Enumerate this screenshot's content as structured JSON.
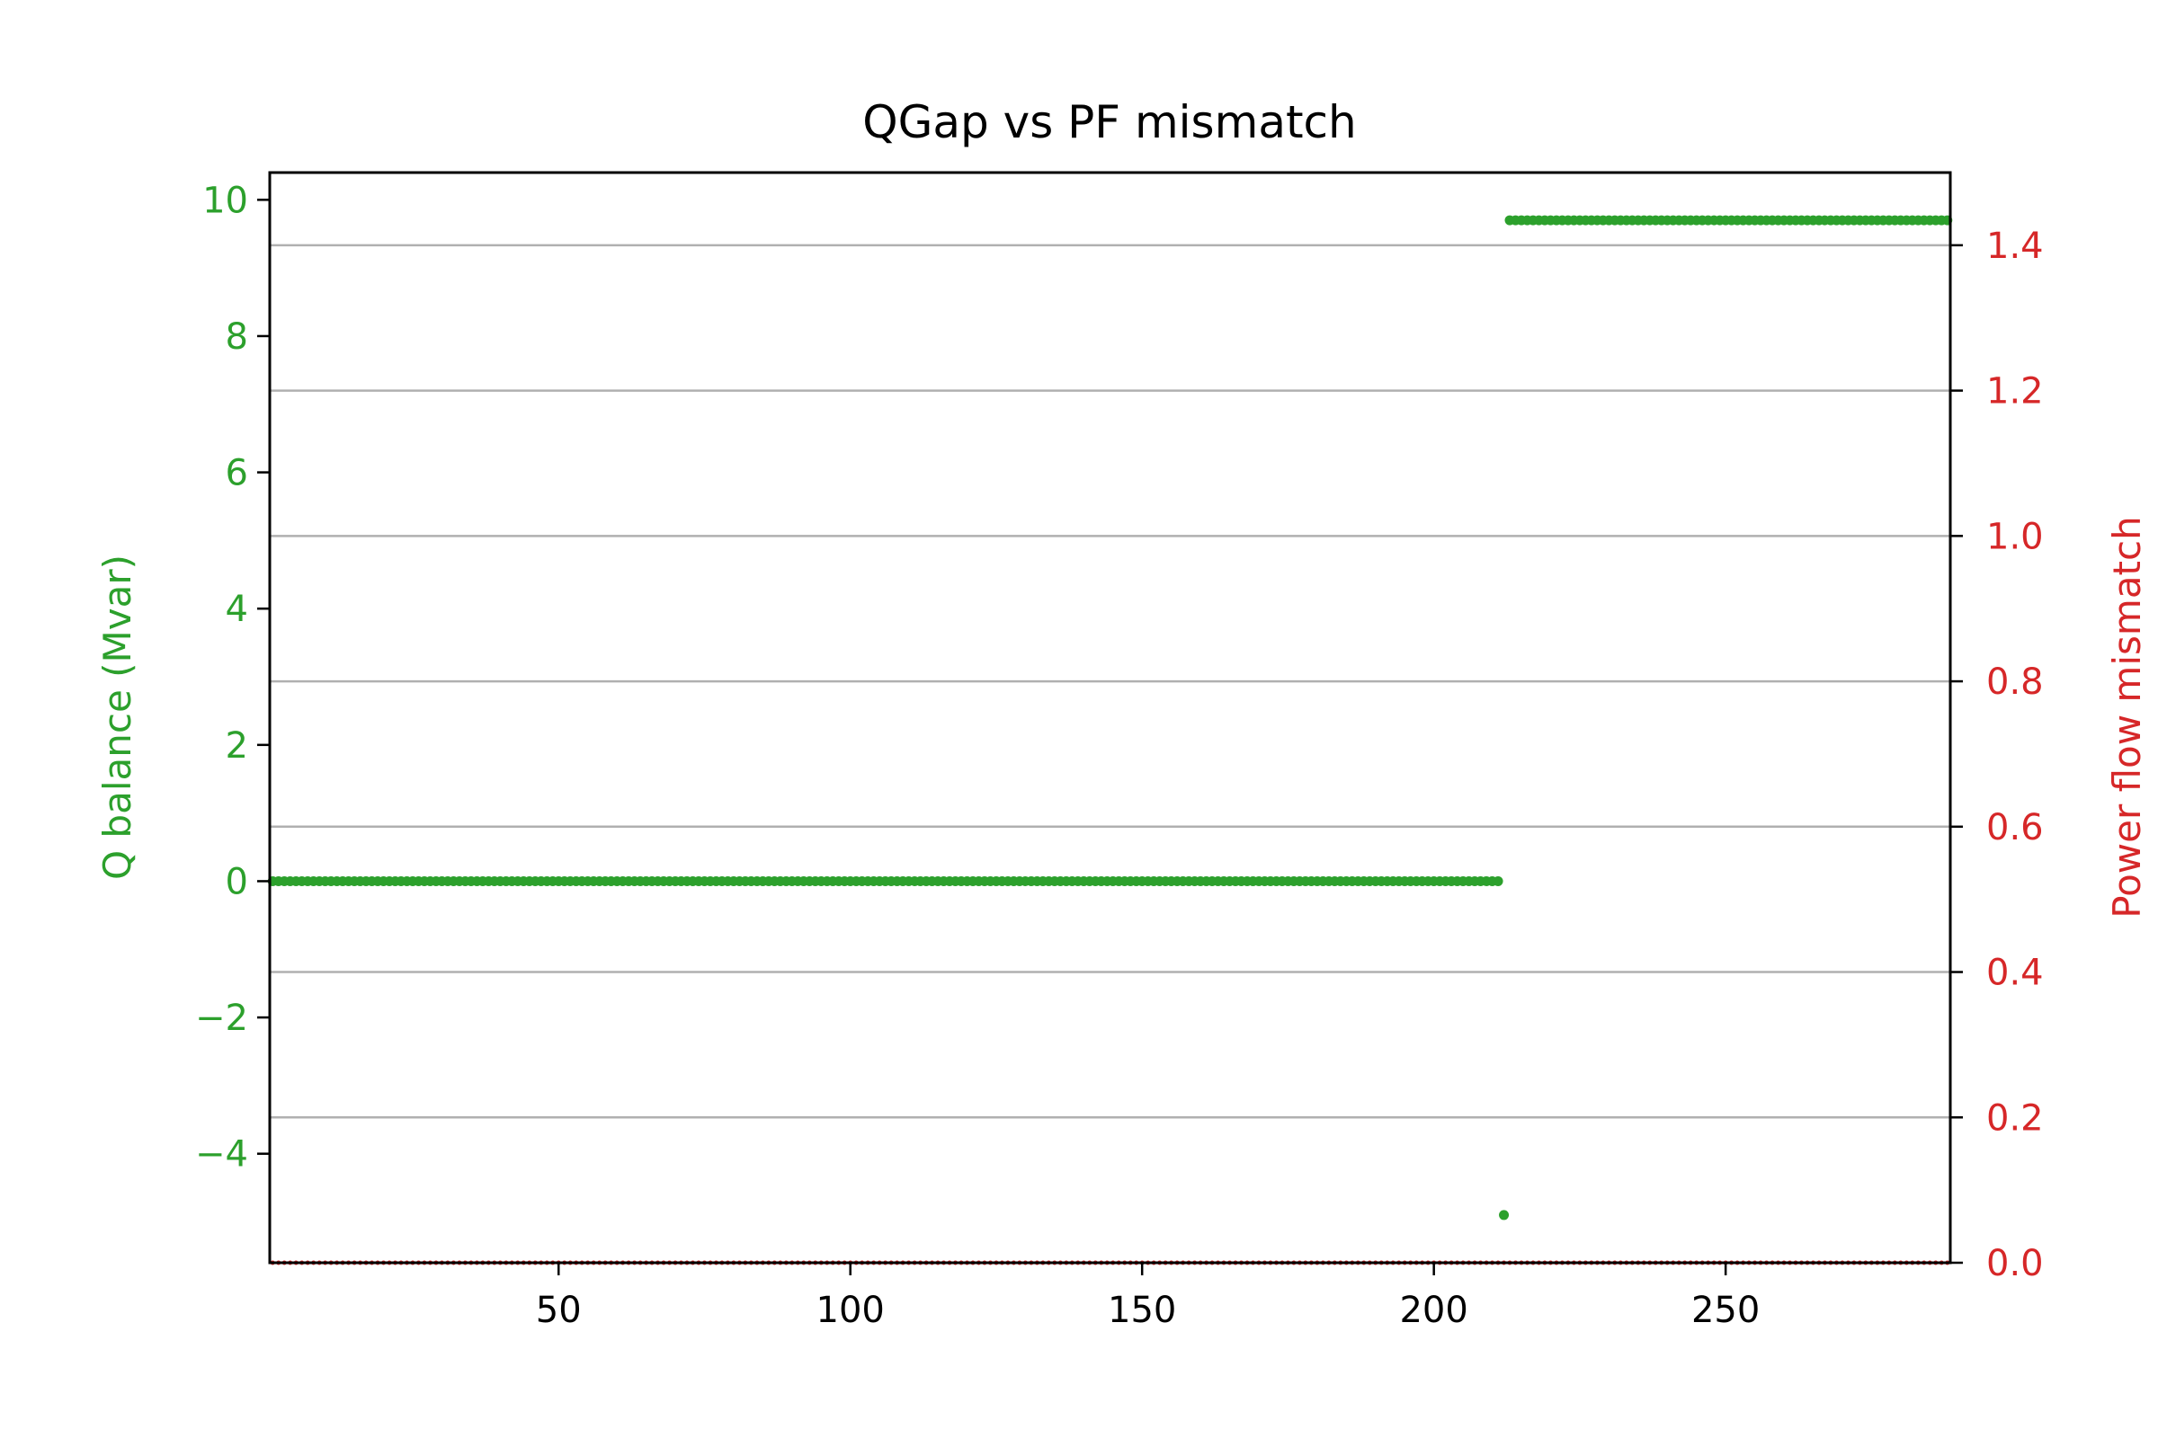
{
  "chart_data": {
    "type": "scatter",
    "title": "QGap vs PF mismatch",
    "xlabel": "",
    "xlim": [
      0.5,
      288.5
    ],
    "x_ticks": [
      50,
      100,
      150,
      200,
      250
    ],
    "x_tick_labels": [
      "50",
      "100",
      "150",
      "200",
      "250"
    ],
    "left_axis": {
      "label": "Q balance (Mvar)",
      "color": "#2ca02c",
      "ylim": [
        -5.6,
        10.4
      ],
      "ticks": [
        -4,
        -2,
        0,
        2,
        4,
        6,
        8,
        10
      ],
      "tick_labels": [
        "−4",
        "−2",
        "0",
        "2",
        "4",
        "6",
        "8",
        "10"
      ]
    },
    "right_axis": {
      "label": "Power flow mismatch",
      "color": "#d62728",
      "ylim": [
        0.0,
        1.5
      ],
      "ticks": [
        0.0,
        0.2,
        0.4,
        0.6,
        0.8,
        1.0,
        1.2,
        1.4
      ],
      "tick_labels": [
        "0.0",
        "0.2",
        "0.4",
        "0.6",
        "0.8",
        "1.0",
        "1.2",
        "1.4"
      ],
      "grid": true
    },
    "series": [
      {
        "name": "Q balance",
        "axis": "left",
        "color": "#2ca02c",
        "segments": [
          {
            "x_start": 1,
            "x_end": 211,
            "value": 0.0
          },
          {
            "x_start": 212,
            "x_end": 212,
            "value": -4.9
          },
          {
            "x_start": 213,
            "x_end": 288,
            "value": 9.7
          }
        ]
      },
      {
        "name": "Power flow mismatch",
        "axis": "right",
        "color": "#d62728",
        "segments": [
          {
            "x_start": 1,
            "x_end": 288,
            "value": 0.0
          }
        ]
      }
    ]
  }
}
